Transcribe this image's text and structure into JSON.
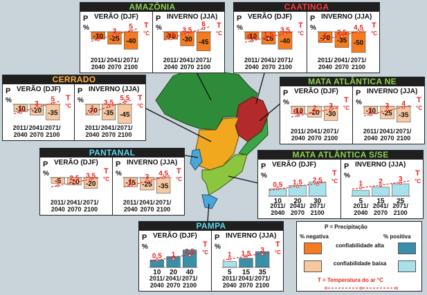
{
  "colors": {
    "title_green": "#8fd14f",
    "title_red": "#ff3b3b",
    "title_orange": "#ffb23e",
    "title_cyan": "#5fd6f0",
    "neg_high": "#f47b20",
    "neg_low": "#f8c9a0",
    "pos_high": "#3a8fa8",
    "pos_low": "#a8e0ec",
    "temp": "#e8231b"
  },
  "chart_data": [
    {
      "type": "bar",
      "title": "AMAZÔNIA",
      "title_color": "title_green",
      "periods": [
        "2011/ 2040",
        "2041/ 2070",
        "2071/ 2100"
      ],
      "seasons": [
        {
          "name": "VERÃO (DJF)",
          "precip": [
            -10,
            -25,
            -40
          ],
          "confidence": [
            "high",
            "high",
            "high"
          ],
          "temp": [
            1,
            3,
            5
          ]
        },
        {
          "name": "INVERNO (JJA)",
          "precip": [
            -10,
            -30,
            -45
          ],
          "confidence": [
            "high",
            "high",
            "high"
          ],
          "temp": [
            1.5,
            3.5,
            6
          ]
        }
      ]
    },
    {
      "type": "bar",
      "title": "CAATINGA",
      "title_color": "title_red",
      "periods": [
        "2011/ 2040",
        "2041/ 2070",
        "2071/ 2100"
      ],
      "seasons": [
        {
          "name": "VERÃO (DJF)",
          "precip": [
            -10,
            -25,
            -40
          ],
          "confidence": [
            "high",
            "high",
            "high"
          ],
          "temp": [
            0.5,
            1.5,
            3.5
          ]
        },
        {
          "name": "INVERNO (JJA)",
          "precip": [
            -20,
            -35,
            -50
          ],
          "confidence": [
            "high",
            "high",
            "high"
          ],
          "temp": [
            1,
            2.5,
            4.5
          ]
        }
      ]
    },
    {
      "type": "bar",
      "title": "CERRADO",
      "title_color": "title_orange",
      "periods": [
        "2011/ 2040",
        "2041/ 2070",
        "2071/ 2100"
      ],
      "seasons": [
        {
          "name": "VERÃO (DJF)",
          "precip": [
            -10,
            -20,
            -35
          ],
          "confidence": [
            "low",
            "low",
            "low"
          ],
          "temp": [
            1,
            3,
            5
          ]
        },
        {
          "name": "INVERNO (JJA)",
          "precip": [
            -20,
            -35,
            -45
          ],
          "confidence": [
            "low",
            "low",
            "low"
          ],
          "temp": [
            1,
            3.5,
            5.5
          ]
        }
      ]
    },
    {
      "type": "bar",
      "title": "MATA ATLÂNTICA NE",
      "title_color": "title_green",
      "periods": [
        "2011/ 2040",
        "2041/ 2070",
        "2071/ 2100"
      ],
      "seasons": [
        {
          "name": "VERÃO (DJF)",
          "precip": [
            -10,
            -20,
            -30
          ],
          "confidence": [
            "low",
            "low",
            "low"
          ],
          "temp": [
            0.5,
            2,
            3
          ]
        },
        {
          "name": "INVERNO (JJA)",
          "precip": [
            -10,
            -25,
            -35
          ],
          "confidence": [
            "low",
            "low",
            "low"
          ],
          "temp": [
            1,
            3,
            4
          ]
        }
      ]
    },
    {
      "type": "bar",
      "title": "PANTANAL",
      "title_color": "title_cyan",
      "periods": [
        "2011/ 2040",
        "2041/ 2070",
        "2071/ 2100"
      ],
      "seasons": [
        {
          "name": "VERÃO (DJF)",
          "precip": [
            -5,
            -10,
            -20
          ],
          "confidence": [
            "low",
            "low",
            "low"
          ],
          "temp": [
            1,
            2.5,
            3.5
          ]
        },
        {
          "name": "INVERNO (JJA)",
          "precip": [
            -15,
            -25,
            -35
          ],
          "confidence": [
            "low",
            "low",
            "low"
          ],
          "temp": [
            1,
            3,
            4.5
          ]
        }
      ]
    },
    {
      "type": "bar",
      "title": "MATA ATLÂNTICA S/SE",
      "title_color": "title_green",
      "periods": [
        "2011/ 2040",
        "2041/ 2070",
        "2071/ 2100"
      ],
      "seasons": [
        {
          "name": "VERÃO (DJF)",
          "precip": [
            10,
            20,
            30
          ],
          "confidence": [
            "low",
            "low",
            "low"
          ],
          "temp": [
            0.5,
            1.5,
            2.5
          ]
        },
        {
          "name": "INVERNO (JJA)",
          "precip": [
            5,
            15,
            25
          ],
          "confidence": [
            "low",
            "low",
            "low"
          ],
          "temp": [
            1,
            2,
            3
          ]
        }
      ]
    },
    {
      "type": "bar",
      "title": "PAMPA",
      "title_color": "title_cyan",
      "periods": [
        "2011/ 2040",
        "2041/ 2070",
        "2071/ 2100"
      ],
      "seasons": [
        {
          "name": "VERÃO (DJF)",
          "precip": [
            10,
            20,
            40
          ],
          "confidence": [
            "high",
            "high",
            "high"
          ],
          "temp": [
            0.5,
            1,
            2.5
          ]
        },
        {
          "name": "INVERNO (JJA)",
          "precip": [
            5,
            15,
            35
          ],
          "confidence": [
            "low",
            "high",
            "high"
          ],
          "temp": [
            1,
            1.5,
            3
          ]
        }
      ]
    }
  ],
  "axis": {
    "p": "P",
    "pct": "%",
    "t": "T",
    "deg": "°C"
  },
  "legend": {
    "title": "P = Precipitação",
    "neg": "% negativa",
    "pos": "% positiva",
    "high": "confiabilidade alta",
    "low": "confiabilidade baixa",
    "temp": "T = Temperatura do ar °C"
  }
}
